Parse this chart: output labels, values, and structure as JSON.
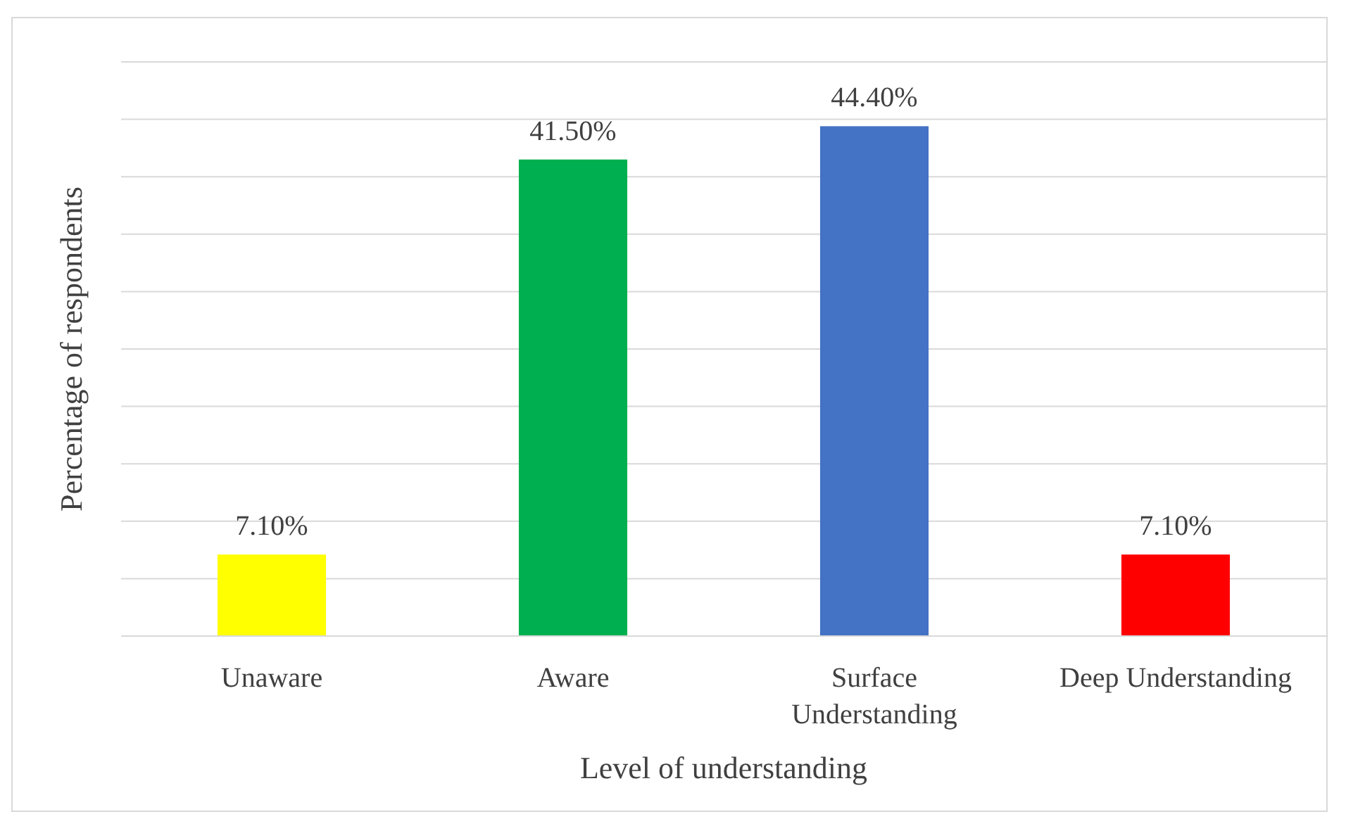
{
  "chart_data": {
    "type": "bar",
    "xlabel": "Level of understanding",
    "ylabel": "Percentage of respondents",
    "categories": [
      "Unaware",
      "Aware",
      "Surface Understanding",
      "Deep Understanding"
    ],
    "values": [
      7.1,
      41.5,
      44.4,
      7.1
    ],
    "colors": [
      "#ffff00",
      "#00b050",
      "#4472c4",
      "#ff0000"
    ],
    "value_labels": [
      "7.10%",
      "41.50%",
      "44.40%",
      "7.10%"
    ],
    "ylim": [
      0,
      50
    ],
    "yticks": [
      {
        "value": 0,
        "label": null
      },
      {
        "value": 5,
        "label": null
      },
      {
        "value": 10,
        "label": null
      },
      {
        "value": 15,
        "label": null
      },
      {
        "value": 20,
        "label": null
      },
      {
        "value": 25,
        "label": null
      },
      {
        "value": 30,
        "label": null
      },
      {
        "value": 35,
        "label": null
      },
      {
        "value": 40,
        "label": null
      },
      {
        "value": 45,
        "label": null
      },
      {
        "value": 50,
        "label": null
      }
    ],
    "grid": "y",
    "tick_labels": "x"
  }
}
